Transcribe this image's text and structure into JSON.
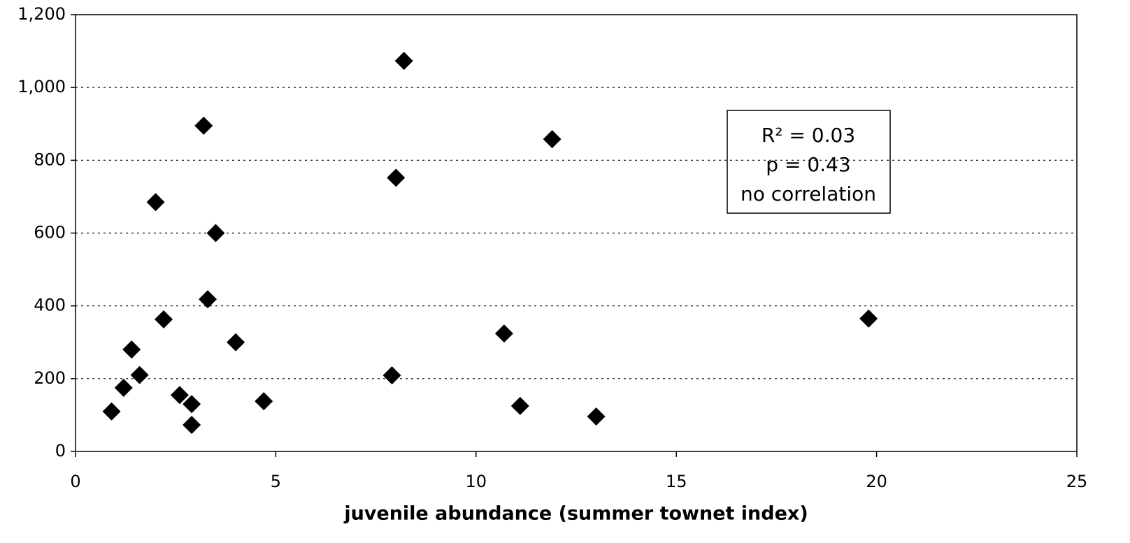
{
  "chart_data": {
    "type": "scatter",
    "x_label": "juvenile abundance (summer townet index)",
    "x": [
      0.9,
      1.2,
      1.4,
      1.6,
      2.0,
      2.2,
      2.6,
      2.9,
      2.9,
      3.2,
      3.3,
      3.5,
      4.0,
      4.7,
      7.9,
      8.0,
      8.2,
      10.7,
      11.1,
      11.9,
      13.0,
      19.8
    ],
    "values": [
      110,
      175,
      280,
      210,
      685,
      363,
      155,
      130,
      73,
      895,
      418,
      600,
      300,
      138,
      209,
      752,
      1073,
      324,
      125,
      858,
      96,
      365
    ],
    "color": "#000000",
    "xlim": [
      0,
      25
    ],
    "xticks": [
      0,
      5,
      10,
      15,
      20,
      25
    ],
    "ylim": [
      0,
      1200
    ],
    "yticks": [
      0,
      200,
      400,
      600,
      800,
      {
        "value": 1000,
        "label": "1,000"
      },
      {
        "value": 1200,
        "label": "1,200"
      }
    ],
    "grid": true,
    "annotation": [
      "R² = 0.03",
      "p = 0.43",
      "no correlation"
    ]
  }
}
